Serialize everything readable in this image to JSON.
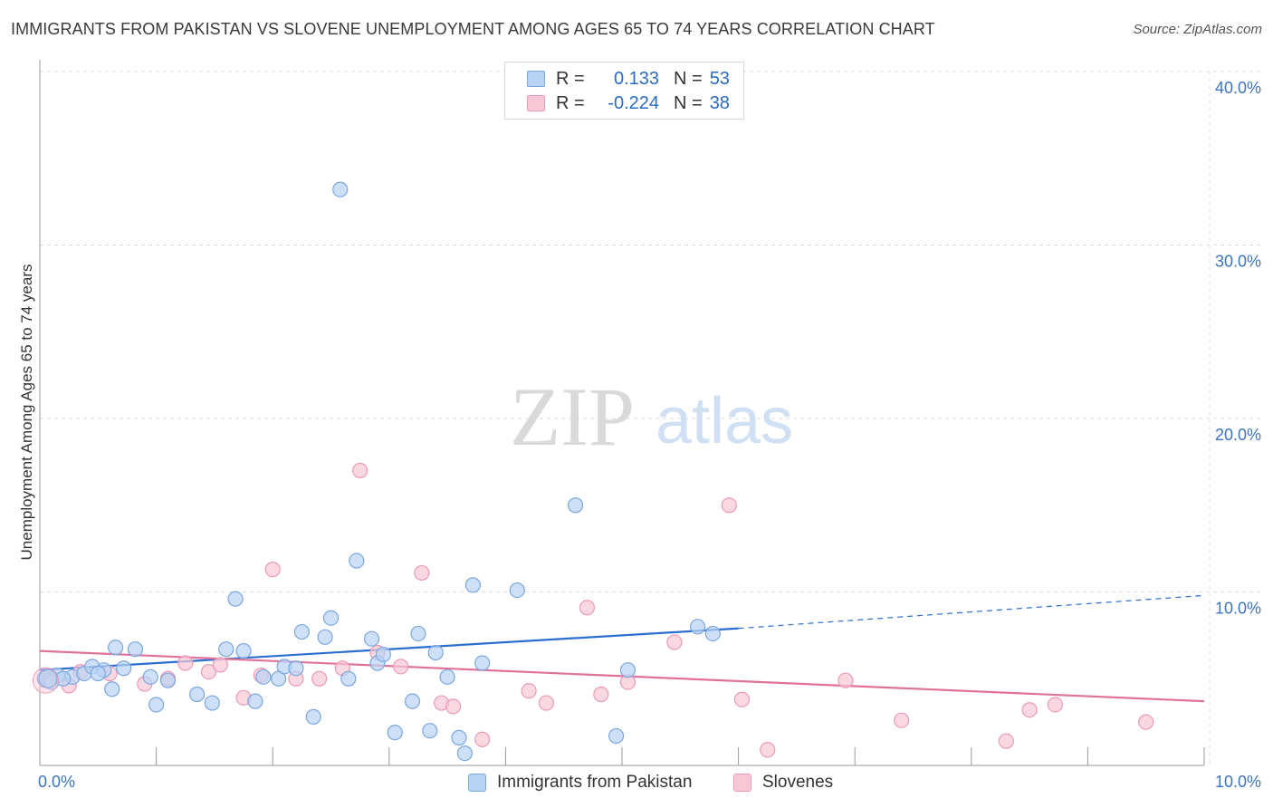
{
  "title": "IMMIGRANTS FROM PAKISTAN VS SLOVENE UNEMPLOYMENT AMONG AGES 65 TO 74 YEARS CORRELATION CHART",
  "source": "Source: ZipAtlas.com",
  "watermark": {
    "zip": "ZIP",
    "atlas": "atlas"
  },
  "legend": {
    "rows": [
      {
        "r_label": "R =",
        "r_value": "0.133",
        "n_label": "N =",
        "n_value": "53"
      },
      {
        "r_label": "R =",
        "r_value": "-0.224",
        "n_label": "N =",
        "n_value": "38"
      }
    ]
  },
  "colors": {
    "pakistan_fill": "#b9d3f3",
    "pakistan_stroke": "#7aa7e0",
    "pakistan_line": "#2a6fd0",
    "slovene_fill": "#f8c7d6",
    "slovene_stroke": "#ec9ab4",
    "slovene_line": "#e0719b",
    "tick_label": "#3a74c9",
    "grid": "#dcdcdc"
  },
  "chart_data": {
    "type": "scatter",
    "title": "IMMIGRANTS FROM PAKISTAN VS SLOVENE UNEMPLOYMENT AMONG AGES 65 TO 74 YEARS CORRELATION CHART",
    "xlabel": "",
    "ylabel": "Unemployment Among Ages 65 to 74 years",
    "xlim": [
      0,
      10
    ],
    "ylim": [
      0,
      40
    ],
    "x_tick_labels": [
      "0.0%",
      "10.0%"
    ],
    "y_ticks": [
      10,
      20,
      30,
      40
    ],
    "y_tick_labels": [
      "10.0%",
      "20.0%",
      "30.0%",
      "40.0%"
    ],
    "grid": true,
    "legend_position": "top-center",
    "series": [
      {
        "name": "Immigrants from Pakistan",
        "r": 0.133,
        "n": 53,
        "trend": {
          "x0": 0.0,
          "y0": 5.5,
          "x1": 6.0,
          "y1": 7.9,
          "dashed_to_x": 10.0,
          "dashed_to_y": 9.8
        },
        "points": [
          [
            0.04,
            5.0
          ],
          [
            0.08,
            4.9
          ],
          [
            0.15,
            5.2
          ],
          [
            0.28,
            5.1
          ],
          [
            0.38,
            5.3
          ],
          [
            0.45,
            5.7
          ],
          [
            0.55,
            5.5
          ],
          [
            0.62,
            4.4
          ],
          [
            0.65,
            6.8
          ],
          [
            0.72,
            5.6
          ],
          [
            0.82,
            6.7
          ],
          [
            1.0,
            3.5
          ],
          [
            0.95,
            5.1
          ],
          [
            1.1,
            4.9
          ],
          [
            1.35,
            4.1
          ],
          [
            1.48,
            3.6
          ],
          [
            1.6,
            6.7
          ],
          [
            1.68,
            9.6
          ],
          [
            1.75,
            6.6
          ],
          [
            1.85,
            3.7
          ],
          [
            1.92,
            5.1
          ],
          [
            2.05,
            5.0
          ],
          [
            2.1,
            5.7
          ],
          [
            2.2,
            5.6
          ],
          [
            2.25,
            7.7
          ],
          [
            2.35,
            2.8
          ],
          [
            2.45,
            7.4
          ],
          [
            2.5,
            8.5
          ],
          [
            2.58,
            33.2
          ],
          [
            2.65,
            5.0
          ],
          [
            2.72,
            11.8
          ],
          [
            2.85,
            7.3
          ],
          [
            2.9,
            5.9
          ],
          [
            2.95,
            6.4
          ],
          [
            3.05,
            1.9
          ],
          [
            3.2,
            3.7
          ],
          [
            3.25,
            7.6
          ],
          [
            3.35,
            2.0
          ],
          [
            3.4,
            6.5
          ],
          [
            3.5,
            5.1
          ],
          [
            3.6,
            1.6
          ],
          [
            3.65,
            0.7
          ],
          [
            3.72,
            10.4
          ],
          [
            3.8,
            5.9
          ],
          [
            4.1,
            10.1
          ],
          [
            4.6,
            15.0
          ],
          [
            4.95,
            1.7
          ],
          [
            5.05,
            5.5
          ],
          [
            5.65,
            8.0
          ],
          [
            5.78,
            7.6
          ],
          [
            0.1,
            4.8
          ],
          [
            0.2,
            5.0
          ],
          [
            0.5,
            5.3
          ]
        ]
      },
      {
        "name": "Slovenes",
        "r": -0.224,
        "n": 38,
        "trend": {
          "x0": 0.0,
          "y0": 6.6,
          "x1": 10.0,
          "y1": 3.7
        },
        "points": [
          [
            0.05,
            4.9
          ],
          [
            0.25,
            4.6
          ],
          [
            0.6,
            5.3
          ],
          [
            0.9,
            4.7
          ],
          [
            1.25,
            5.9
          ],
          [
            1.45,
            5.4
          ],
          [
            1.55,
            5.8
          ],
          [
            1.75,
            3.9
          ],
          [
            1.9,
            5.2
          ],
          [
            2.0,
            11.3
          ],
          [
            2.2,
            5.0
          ],
          [
            2.4,
            5.0
          ],
          [
            2.6,
            5.6
          ],
          [
            2.75,
            17.0
          ],
          [
            2.9,
            6.5
          ],
          [
            3.1,
            5.7
          ],
          [
            3.28,
            11.1
          ],
          [
            3.45,
            3.6
          ],
          [
            3.55,
            3.4
          ],
          [
            3.8,
            1.5
          ],
          [
            4.2,
            4.3
          ],
          [
            4.35,
            3.6
          ],
          [
            4.7,
            9.1
          ],
          [
            4.82,
            4.1
          ],
          [
            5.05,
            4.8
          ],
          [
            5.45,
            7.1
          ],
          [
            5.92,
            15.0
          ],
          [
            6.03,
            3.8
          ],
          [
            6.25,
            0.9
          ],
          [
            6.92,
            4.9
          ],
          [
            7.4,
            2.6
          ],
          [
            8.3,
            1.4
          ],
          [
            8.5,
            3.2
          ],
          [
            8.72,
            3.5
          ],
          [
            9.5,
            2.5
          ],
          [
            0.1,
            5.0
          ],
          [
            0.35,
            5.4
          ],
          [
            1.1,
            5.0
          ]
        ]
      }
    ]
  },
  "bottom_legend": [
    {
      "label": "Immigrants from Pakistan"
    },
    {
      "label": "Slovenes"
    }
  ]
}
